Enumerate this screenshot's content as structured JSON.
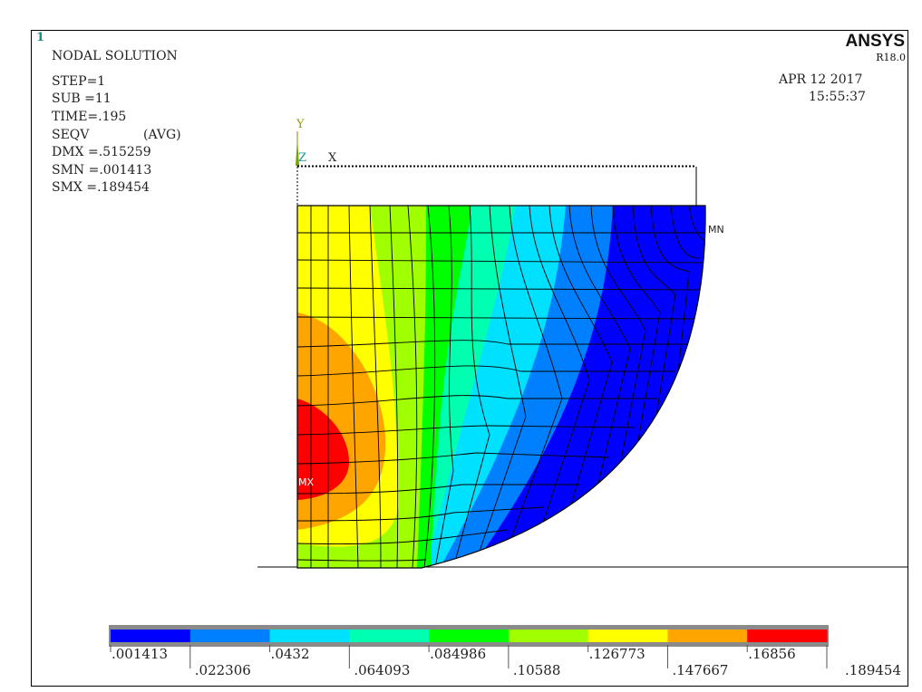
{
  "window": {
    "number": "1"
  },
  "brand": {
    "name": "ANSYS",
    "version": "R18.0"
  },
  "header": {
    "title": "NODAL SOLUTION",
    "date": "APR 12 2017",
    "time": "15:55:37"
  },
  "info": {
    "step": "STEP=1",
    "sub": "SUB =11",
    "time": "TIME=.195",
    "seqv": "SEQV",
    "avg": "(AVG)",
    "dmx": "DMX =.515259",
    "smn": "SMN =.001413",
    "smx": "SMX =.189454"
  },
  "triad": {
    "y": "Y",
    "z": "Z",
    "x": "X"
  },
  "markers": {
    "mn": "MN",
    "mx": "MX"
  },
  "legend": {
    "colors": [
      "#0000ff",
      "#0080ff",
      "#00e0ff",
      "#00ffb0",
      "#00ff00",
      "#a0ff00",
      "#ffff00",
      "#ffa500",
      "#ff0000"
    ],
    "top_labels": [
      ".001413",
      ".0432",
      ".084986",
      ".126773",
      ".16856"
    ],
    "bottom_labels": [
      ".022306",
      ".064093",
      ".10588",
      ".147667",
      ".189454"
    ]
  }
}
